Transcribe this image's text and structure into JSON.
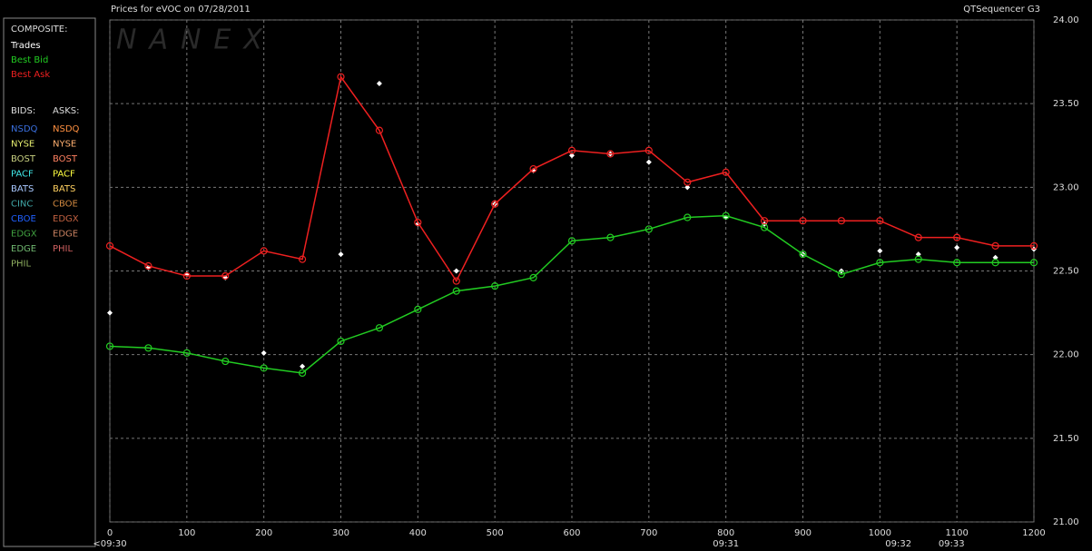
{
  "chart_data": {
    "type": "line",
    "title": "Prices for  eVOC  on  07/28/2011",
    "subtitle": "QTSequencer G3",
    "watermark": "NANEX",
    "x": [
      0,
      50,
      100,
      150,
      200,
      250,
      300,
      350,
      400,
      450,
      500,
      550,
      600,
      650,
      700,
      750,
      800,
      850,
      900,
      950,
      1000,
      1050,
      1100,
      1150,
      1200
    ],
    "series": [
      {
        "name": "Trades",
        "color": "#ffffff",
        "style": "points",
        "values": [
          22.25,
          22.52,
          22.48,
          22.46,
          22.01,
          21.93,
          22.6,
          23.62,
          22.78,
          22.5,
          22.9,
          23.1,
          23.19,
          23.2,
          23.15,
          23.0,
          22.82,
          22.78,
          22.6,
          22.5,
          22.62,
          22.6,
          22.64,
          22.58,
          22.63
        ]
      },
      {
        "name": "Best Bid",
        "color": "#22cc22",
        "style": "step",
        "values": [
          22.05,
          22.04,
          22.01,
          21.96,
          21.92,
          21.89,
          22.08,
          22.16,
          22.27,
          22.38,
          22.41,
          22.46,
          22.68,
          22.7,
          22.75,
          22.82,
          22.83,
          22.76,
          22.6,
          22.48,
          22.55,
          22.57,
          22.55,
          22.55,
          22.55
        ]
      },
      {
        "name": "Best Ask",
        "color": "#ee2020",
        "style": "step",
        "values": [
          22.65,
          22.53,
          22.47,
          22.47,
          22.62,
          22.57,
          23.66,
          23.34,
          22.79,
          22.44,
          22.9,
          23.11,
          23.22,
          23.2,
          23.22,
          23.03,
          23.09,
          22.8,
          22.8,
          22.8,
          22.8,
          22.7,
          22.7,
          22.65,
          22.65
        ]
      }
    ],
    "legend_title": "COMPOSITE:",
    "bids_title": "BIDS:",
    "asks_title": "ASKS:",
    "bids": [
      {
        "name": "NSDQ",
        "color": "#3a70e0"
      },
      {
        "name": "NYSE",
        "color": "#e8f070"
      },
      {
        "name": "BOST",
        "color": "#c8d080"
      },
      {
        "name": "PACF",
        "color": "#40e8e8"
      },
      {
        "name": "BATS",
        "color": "#a8c8ff"
      },
      {
        "name": "CINC",
        "color": "#40a8a8"
      },
      {
        "name": "CBOE",
        "color": "#2060ff"
      },
      {
        "name": "EDGX",
        "color": "#40a040"
      },
      {
        "name": "EDGE",
        "color": "#70b870"
      },
      {
        "name": "PHIL",
        "color": "#90b060"
      }
    ],
    "asks": [
      {
        "name": "NSDQ",
        "color": "#ff9040"
      },
      {
        "name": "NYSE",
        "color": "#ffb070"
      },
      {
        "name": "BOST",
        "color": "#ff8060"
      },
      {
        "name": "PACF",
        "color": "#ffff40"
      },
      {
        "name": "BATS",
        "color": "#ffd060"
      },
      {
        "name": "CBOE",
        "color": "#d08840"
      },
      {
        "name": "EDGX",
        "color": "#c06040"
      },
      {
        "name": "EDGE",
        "color": "#c88060"
      },
      {
        "name": "PHIL",
        "color": "#d06060"
      }
    ],
    "xlim": [
      0,
      1200
    ],
    "xticks": [
      0,
      100,
      200,
      300,
      400,
      500,
      600,
      700,
      800,
      900,
      1000,
      1100,
      1200
    ],
    "time_labels": [
      {
        "value": 0,
        "label": "<09:30"
      },
      {
        "value": 800,
        "label": "09:31"
      },
      {
        "value": 1024,
        "label": "09:32"
      },
      {
        "value": 1093,
        "label": "09:33"
      }
    ],
    "ylim": [
      21,
      24
    ],
    "yticks": [
      {
        "value": 21,
        "label": "21.00"
      },
      {
        "value": 21.5,
        "label": "21.50"
      },
      {
        "value": 22,
        "label": "22.00"
      },
      {
        "value": 22.5,
        "label": "22.50"
      },
      {
        "value": 23,
        "label": "23.00"
      },
      {
        "value": 23.5,
        "label": "23.50"
      },
      {
        "value": 24,
        "label": "24.00"
      }
    ],
    "grid": true
  }
}
